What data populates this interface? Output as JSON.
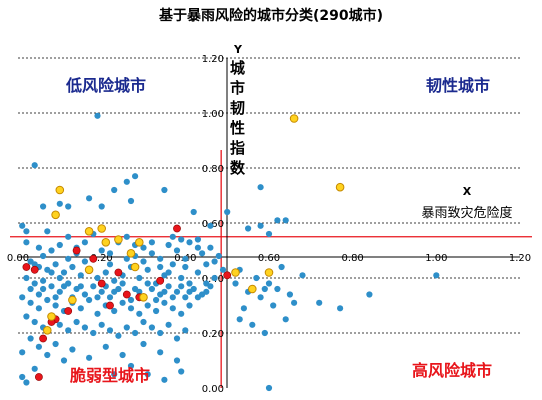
{
  "chart_data": {
    "type": "scatter",
    "title": "基于暴雨风险的城市分类(290城市)",
    "xlabel": "暴雨致灾危险度",
    "xlabel_axis_name": "X",
    "ylabel": "城市韧性指数",
    "ylabel_axis_name": "Y",
    "xlim": [
      0.0,
      1.2
    ],
    "ylim": [
      0.0,
      1.2
    ],
    "x_ticks": [
      "0.00",
      "0.20",
      "0.40",
      "0.60",
      "0.80",
      "1.00",
      "1.20"
    ],
    "y_ticks": [
      "0.00",
      "0.20",
      "0.40",
      "0.60",
      "0.80",
      "1.00",
      "1.20"
    ],
    "x_tick_values": [
      0.0,
      0.2,
      0.4,
      0.6,
      0.8,
      1.0,
      1.2
    ],
    "y_tick_values": [
      0.0,
      0.2,
      0.4,
      0.6,
      0.8,
      1.0,
      1.2
    ],
    "grid": "horizontal-dashed",
    "thresholds": {
      "x": 0.5,
      "y": 0.55
    },
    "quadrant_labels": {
      "top_left": "低风险城市",
      "top_right": "韧性城市",
      "bottom_left": "脆弱型城市",
      "bottom_right": "高风险城市"
    },
    "colors": {
      "default": "#2e8fc9",
      "red": "#e8151b",
      "yellow": "#ffd21f",
      "yellow_stroke": "#c58a00",
      "threshold_line": "#e8151b",
      "label_blue": "#1b2a8f",
      "label_red": "#e8151b"
    },
    "series": [
      {
        "style": "default",
        "points": [
          [
            0.01,
            0.59
          ],
          [
            0.02,
            0.57
          ],
          [
            0.04,
            0.81
          ],
          [
            0.07,
            0.57
          ],
          [
            0.06,
            0.66
          ],
          [
            0.1,
            0.67
          ],
          [
            0.12,
            0.66
          ],
          [
            0.2,
            0.66
          ],
          [
            0.17,
            0.69
          ],
          [
            0.23,
            0.72
          ],
          [
            0.27,
            0.68
          ],
          [
            0.35,
            0.72
          ],
          [
            0.19,
            0.99
          ],
          [
            0.26,
            0.75
          ],
          [
            0.28,
            0.77
          ],
          [
            0.42,
            0.64
          ],
          [
            0.5,
            0.64
          ],
          [
            0.58,
            0.73
          ],
          [
            0.62,
            0.61
          ],
          [
            0.64,
            0.61
          ],
          [
            0.58,
            0.59
          ],
          [
            0.6,
            0.56
          ],
          [
            0.55,
            0.58
          ],
          [
            0.46,
            0.59
          ],
          [
            0.39,
            0.54
          ],
          [
            0.02,
            0.53
          ],
          [
            0.05,
            0.51
          ],
          [
            0.08,
            0.5
          ],
          [
            0.1,
            0.52
          ],
          [
            0.12,
            0.47
          ],
          [
            0.14,
            0.51
          ],
          [
            0.16,
            0.53
          ],
          [
            0.18,
            0.56
          ],
          [
            0.2,
            0.5
          ],
          [
            0.22,
            0.49
          ],
          [
            0.24,
            0.53
          ],
          [
            0.26,
            0.55
          ],
          [
            0.28,
            0.48
          ],
          [
            0.3,
            0.51
          ],
          [
            0.32,
            0.49
          ],
          [
            0.34,
            0.47
          ],
          [
            0.36,
            0.52
          ],
          [
            0.38,
            0.5
          ],
          [
            0.4,
            0.47
          ],
          [
            0.41,
            0.53
          ],
          [
            0.43,
            0.51
          ],
          [
            0.45,
            0.45
          ],
          [
            0.47,
            0.46
          ],
          [
            0.49,
            0.43
          ],
          [
            0.03,
            0.46
          ],
          [
            0.05,
            0.44
          ],
          [
            0.07,
            0.43
          ],
          [
            0.09,
            0.45
          ],
          [
            0.11,
            0.42
          ],
          [
            0.13,
            0.44
          ],
          [
            0.15,
            0.41
          ],
          [
            0.17,
            0.43
          ],
          [
            0.19,
            0.4
          ],
          [
            0.21,
            0.42
          ],
          [
            0.23,
            0.39
          ],
          [
            0.25,
            0.41
          ],
          [
            0.27,
            0.44
          ],
          [
            0.29,
            0.4
          ],
          [
            0.31,
            0.43
          ],
          [
            0.33,
            0.38
          ],
          [
            0.35,
            0.41
          ],
          [
            0.37,
            0.45
          ],
          [
            0.39,
            0.4
          ],
          [
            0.41,
            0.38
          ],
          [
            0.43,
            0.42
          ],
          [
            0.45,
            0.38
          ],
          [
            0.47,
            0.4
          ],
          [
            0.02,
            0.4
          ],
          [
            0.04,
            0.38
          ],
          [
            0.06,
            0.36
          ],
          [
            0.08,
            0.37
          ],
          [
            0.1,
            0.35
          ],
          [
            0.12,
            0.38
          ],
          [
            0.14,
            0.36
          ],
          [
            0.16,
            0.34
          ],
          [
            0.18,
            0.37
          ],
          [
            0.2,
            0.35
          ],
          [
            0.22,
            0.33
          ],
          [
            0.24,
            0.36
          ],
          [
            0.26,
            0.34
          ],
          [
            0.28,
            0.36
          ],
          [
            0.3,
            0.33
          ],
          [
            0.32,
            0.36
          ],
          [
            0.34,
            0.34
          ],
          [
            0.36,
            0.37
          ],
          [
            0.38,
            0.35
          ],
          [
            0.4,
            0.33
          ],
          [
            0.42,
            0.36
          ],
          [
            0.44,
            0.34
          ],
          [
            0.46,
            0.37
          ],
          [
            0.01,
            0.33
          ],
          [
            0.03,
            0.31
          ],
          [
            0.05,
            0.29
          ],
          [
            0.07,
            0.32
          ],
          [
            0.09,
            0.3
          ],
          [
            0.11,
            0.28
          ],
          [
            0.13,
            0.31
          ],
          [
            0.15,
            0.29
          ],
          [
            0.17,
            0.32
          ],
          [
            0.19,
            0.27
          ],
          [
            0.21,
            0.3
          ],
          [
            0.23,
            0.28
          ],
          [
            0.25,
            0.31
          ],
          [
            0.27,
            0.29
          ],
          [
            0.29,
            0.27
          ],
          [
            0.31,
            0.3
          ],
          [
            0.33,
            0.28
          ],
          [
            0.35,
            0.31
          ],
          [
            0.37,
            0.29
          ],
          [
            0.39,
            0.27
          ],
          [
            0.41,
            0.3
          ],
          [
            0.02,
            0.26
          ],
          [
            0.04,
            0.24
          ],
          [
            0.06,
            0.22
          ],
          [
            0.08,
            0.25
          ],
          [
            0.1,
            0.23
          ],
          [
            0.12,
            0.21
          ],
          [
            0.14,
            0.24
          ],
          [
            0.16,
            0.22
          ],
          [
            0.18,
            0.2
          ],
          [
            0.2,
            0.23
          ],
          [
            0.22,
            0.21
          ],
          [
            0.24,
            0.19
          ],
          [
            0.26,
            0.22
          ],
          [
            0.28,
            0.2
          ],
          [
            0.3,
            0.24
          ],
          [
            0.32,
            0.22
          ],
          [
            0.34,
            0.2
          ],
          [
            0.36,
            0.23
          ],
          [
            0.38,
            0.18
          ],
          [
            0.4,
            0.21
          ],
          [
            0.01,
            0.13
          ],
          [
            0.03,
            0.18
          ],
          [
            0.05,
            0.15
          ],
          [
            0.07,
            0.12
          ],
          [
            0.09,
            0.16
          ],
          [
            0.11,
            0.1
          ],
          [
            0.13,
            0.14
          ],
          [
            0.17,
            0.11
          ],
          [
            0.21,
            0.15
          ],
          [
            0.25,
            0.12
          ],
          [
            0.3,
            0.16
          ],
          [
            0.34,
            0.13
          ],
          [
            0.38,
            0.1
          ],
          [
            0.01,
            0.04
          ],
          [
            0.02,
            0.02
          ],
          [
            0.04,
            0.07
          ],
          [
            0.23,
            0.05
          ],
          [
            0.27,
            0.08
          ],
          [
            0.31,
            0.05
          ],
          [
            0.35,
            0.03
          ],
          [
            0.39,
            0.06
          ],
          [
            0.04,
            0.45
          ],
          [
            0.06,
            0.48
          ],
          [
            0.08,
            0.42
          ],
          [
            0.12,
            0.55
          ],
          [
            0.14,
            0.49
          ],
          [
            0.18,
            0.47
          ],
          [
            0.22,
            0.45
          ],
          [
            0.26,
            0.47
          ],
          [
            0.3,
            0.46
          ],
          [
            0.34,
            0.44
          ],
          [
            0.36,
            0.42
          ],
          [
            0.4,
            0.44
          ],
          [
            0.44,
            0.49
          ],
          [
            0.46,
            0.51
          ],
          [
            0.48,
            0.48
          ],
          [
            0.32,
            0.53
          ],
          [
            0.28,
            0.52
          ],
          [
            0.16,
            0.46
          ],
          [
            0.1,
            0.4
          ],
          [
            0.06,
            0.39
          ],
          [
            0.43,
            0.54
          ],
          [
            0.37,
            0.55
          ],
          [
            0.03,
            0.36
          ],
          [
            0.05,
            0.34
          ],
          [
            0.09,
            0.33
          ],
          [
            0.11,
            0.37
          ],
          [
            0.13,
            0.33
          ],
          [
            0.15,
            0.37
          ],
          [
            0.19,
            0.33
          ],
          [
            0.21,
            0.37
          ],
          [
            0.23,
            0.35
          ],
          [
            0.25,
            0.38
          ],
          [
            0.27,
            0.32
          ],
          [
            0.29,
            0.35
          ],
          [
            0.31,
            0.38
          ],
          [
            0.33,
            0.32
          ],
          [
            0.35,
            0.35
          ],
          [
            0.37,
            0.33
          ],
          [
            0.39,
            0.37
          ],
          [
            0.41,
            0.35
          ],
          [
            0.43,
            0.33
          ],
          [
            0.45,
            0.35
          ],
          [
            0.52,
            0.38
          ],
          [
            0.53,
            0.43
          ],
          [
            0.55,
            0.35
          ],
          [
            0.57,
            0.4
          ],
          [
            0.58,
            0.33
          ],
          [
            0.6,
            0.38
          ],
          [
            0.62,
            0.36
          ],
          [
            0.63,
            0.44
          ],
          [
            0.54,
            0.29
          ],
          [
            0.56,
            0.23
          ],
          [
            0.59,
            0.36
          ],
          [
            0.61,
            0.3
          ],
          [
            0.65,
            0.34
          ],
          [
            0.66,
            0.31
          ],
          [
            0.68,
            0.41
          ],
          [
            0.72,
            0.31
          ],
          [
            0.77,
            0.29
          ],
          [
            0.84,
            0.34
          ],
          [
            1.0,
            0.41
          ],
          [
            0.64,
            0.25
          ],
          [
            0.59,
            0.2
          ],
          [
            0.6,
            0.0
          ],
          [
            0.53,
            0.25
          ]
        ]
      },
      {
        "style": "red",
        "points": [
          [
            0.02,
            0.44
          ],
          [
            0.04,
            0.43
          ],
          [
            0.05,
            0.04
          ],
          [
            0.06,
            0.18
          ],
          [
            0.09,
            0.25
          ],
          [
            0.12,
            0.28
          ],
          [
            0.14,
            0.5
          ],
          [
            0.18,
            0.47
          ],
          [
            0.2,
            0.38
          ],
          [
            0.22,
            0.3
          ],
          [
            0.24,
            0.42
          ],
          [
            0.26,
            0.34
          ],
          [
            0.29,
            0.33
          ],
          [
            0.34,
            0.39
          ],
          [
            0.38,
            0.58
          ],
          [
            0.5,
            0.41
          ],
          [
            0.08,
            0.24
          ]
        ]
      },
      {
        "style": "yellow",
        "points": [
          [
            0.66,
            0.98
          ],
          [
            0.77,
            0.73
          ],
          [
            0.52,
            0.42
          ],
          [
            0.6,
            0.42
          ],
          [
            0.56,
            0.36
          ],
          [
            0.1,
            0.72
          ],
          [
            0.09,
            0.63
          ],
          [
            0.17,
            0.57
          ],
          [
            0.2,
            0.58
          ],
          [
            0.21,
            0.53
          ],
          [
            0.24,
            0.54
          ],
          [
            0.27,
            0.49
          ],
          [
            0.28,
            0.44
          ],
          [
            0.3,
            0.33
          ],
          [
            0.13,
            0.32
          ],
          [
            0.08,
            0.26
          ],
          [
            0.07,
            0.21
          ],
          [
            0.17,
            0.43
          ],
          [
            0.29,
            0.53
          ]
        ]
      }
    ]
  }
}
